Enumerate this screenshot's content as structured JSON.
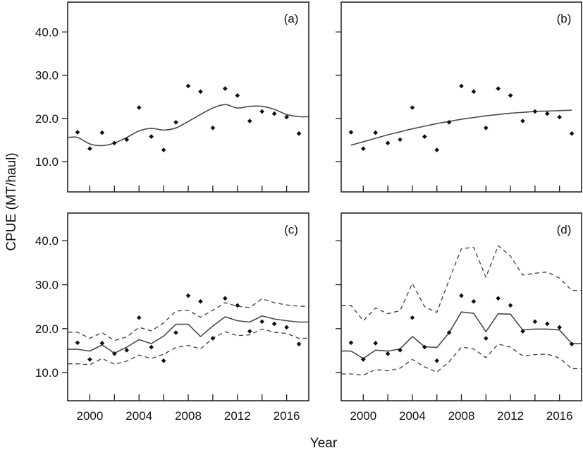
{
  "figure": {
    "y_axis_title": "CPUE (MT/haul)",
    "x_axis_title": "Year"
  },
  "axes": {
    "y_ticks": [
      10,
      20,
      30,
      40
    ],
    "y_tick_labels": [
      "10.0",
      "20.0",
      "30.0",
      "40.0"
    ],
    "x_minor_tick_years": [
      2000,
      2002,
      2004,
      2006,
      2008,
      2010,
      2012,
      2014,
      2016
    ],
    "x_labeled_ticks": [
      2000,
      2004,
      2008,
      2012,
      2016
    ],
    "x_tick_labels": [
      "2000",
      "2004",
      "2008",
      "2012",
      "2016"
    ]
  },
  "colors": {
    "points": "#0d0d0d",
    "fit_line": "#4a4a4a",
    "ci_line": "#3d3d3d",
    "frame": "#1a1a1a"
  },
  "chart_data": [
    {
      "type": "scatter",
      "panel_label": "(a)",
      "position": "top-left",
      "xlabel": "Year",
      "ylabel": "CPUE (MT/haul)",
      "xlim": [
        1998.2,
        2017.8
      ],
      "ylim": [
        3.0,
        46.9
      ],
      "x": [
        1999,
        2000,
        2001,
        2002,
        2003,
        2004,
        2005,
        2006,
        2007,
        2008,
        2009,
        2010,
        2011,
        2012,
        2013,
        2014,
        2015,
        2016,
        2017
      ],
      "points": [
        16.8,
        13.0,
        16.7,
        14.3,
        15.1,
        22.5,
        15.8,
        12.7,
        19.1,
        27.5,
        26.2,
        17.8,
        26.9,
        25.3,
        19.4,
        21.6,
        21.1,
        20.3,
        16.5
      ],
      "lines": [
        {
          "name": "smoother-fit",
          "style": "solid",
          "smooth": true,
          "extend_to_edges": true,
          "values": [
            15.6,
            14.1,
            13.7,
            14.3,
            15.6,
            17.1,
            17.7,
            17.3,
            17.8,
            19.3,
            20.9,
            22.4,
            23.2,
            22.4,
            22.8,
            22.8,
            22.1,
            20.9,
            20.4
          ]
        }
      ],
      "show_y_tick_labels": true,
      "show_x_tick_labels": false,
      "legend": "none",
      "grid": false
    },
    {
      "type": "scatter",
      "panel_label": "(b)",
      "position": "top-right",
      "xlabel": "Year",
      "ylabel": "CPUE (MT/haul)",
      "xlim": [
        1998.2,
        2017.8
      ],
      "ylim": [
        3.0,
        46.9
      ],
      "x": [
        1999,
        2000,
        2001,
        2002,
        2003,
        2004,
        2005,
        2006,
        2007,
        2008,
        2009,
        2010,
        2011,
        2012,
        2013,
        2014,
        2015,
        2016,
        2017
      ],
      "points": [
        16.8,
        13.0,
        16.7,
        14.3,
        15.1,
        22.5,
        15.8,
        12.7,
        19.1,
        27.5,
        26.2,
        17.8,
        26.9,
        25.3,
        19.4,
        21.6,
        21.1,
        20.3,
        16.5
      ],
      "lines": [
        {
          "name": "asymptotic-fit",
          "style": "solid",
          "smooth": true,
          "extend_to_edges": false,
          "values": [
            13.8,
            14.6,
            15.4,
            16.2,
            16.9,
            17.6,
            18.2,
            18.8,
            19.3,
            19.8,
            20.2,
            20.6,
            20.9,
            21.2,
            21.4,
            21.6,
            21.7,
            21.8,
            21.9
          ]
        }
      ],
      "show_y_tick_labels": false,
      "show_x_tick_labels": false,
      "legend": "none",
      "grid": false
    },
    {
      "type": "scatter",
      "panel_label": "(c)",
      "position": "bottom-left",
      "xlabel": "Year",
      "ylabel": "CPUE (MT/haul)",
      "xlim": [
        1998.2,
        2017.8
      ],
      "ylim": [
        3.6,
        46.3
      ],
      "x": [
        1999,
        2000,
        2001,
        2002,
        2003,
        2004,
        2005,
        2006,
        2007,
        2008,
        2009,
        2010,
        2011,
        2012,
        2013,
        2014,
        2015,
        2016,
        2017
      ],
      "points": [
        16.8,
        13.0,
        16.7,
        14.3,
        15.1,
        22.5,
        15.8,
        12.7,
        19.1,
        27.5,
        26.2,
        17.8,
        26.9,
        25.3,
        19.4,
        21.6,
        21.1,
        20.3,
        16.5
      ],
      "lines": [
        {
          "name": "standardized-fit",
          "style": "solid",
          "smooth": false,
          "extend_to_edges": true,
          "values": [
            15.3,
            14.9,
            16.3,
            14.4,
            15.8,
            17.5,
            16.6,
            18.3,
            21.0,
            21.0,
            18.2,
            20.6,
            22.7,
            21.8,
            21.5,
            22.9,
            22.2,
            21.8,
            21.5
          ]
        },
        {
          "name": "upper-ci",
          "style": "dashed",
          "smooth": false,
          "extend_to_edges": true,
          "values": [
            19.2,
            17.8,
            19.1,
            17.3,
            18.1,
            20.3,
            19.5,
            21.3,
            24.0,
            24.2,
            22.6,
            24.2,
            25.9,
            25.1,
            24.8,
            26.8,
            25.9,
            25.4,
            25.1
          ]
        },
        {
          "name": "lower-ci",
          "style": "dashed",
          "smooth": false,
          "extend_to_edges": true,
          "values": [
            12.0,
            11.8,
            13.2,
            11.9,
            12.6,
            14.0,
            13.2,
            14.2,
            15.7,
            16.2,
            15.4,
            17.8,
            19.3,
            18.4,
            18.6,
            19.9,
            19.2,
            18.9,
            17.8
          ]
        }
      ],
      "show_y_tick_labels": true,
      "show_x_tick_labels": true,
      "legend": "none",
      "grid": false
    },
    {
      "type": "scatter",
      "panel_label": "(d)",
      "position": "bottom-right",
      "xlabel": "Year",
      "ylabel": "CPUE (MT/haul)",
      "xlim": [
        1998.2,
        2017.8
      ],
      "ylim": [
        3.6,
        46.3
      ],
      "x": [
        1999,
        2000,
        2001,
        2002,
        2003,
        2004,
        2005,
        2006,
        2007,
        2008,
        2009,
        2010,
        2011,
        2012,
        2013,
        2014,
        2015,
        2016,
        2017
      ],
      "points": [
        16.8,
        13.0,
        16.7,
        14.3,
        15.1,
        22.5,
        15.8,
        12.7,
        19.1,
        27.5,
        26.2,
        17.8,
        26.9,
        25.3,
        19.4,
        21.6,
        21.1,
        20.3,
        16.5
      ],
      "lines": [
        {
          "name": "standardized-fit",
          "style": "solid",
          "smooth": false,
          "extend_to_edges": true,
          "values": [
            14.9,
            13.2,
            15.1,
            14.9,
            15.4,
            18.2,
            15.9,
            15.7,
            19.1,
            23.8,
            23.5,
            19.3,
            23.4,
            23.3,
            19.7,
            19.9,
            19.9,
            19.7,
            16.6
          ]
        },
        {
          "name": "upper-ci",
          "style": "dashed",
          "smooth": false,
          "extend_to_edges": true,
          "values": [
            25.3,
            21.8,
            24.7,
            23.4,
            24.1,
            30.3,
            25.0,
            23.7,
            31.1,
            38.2,
            38.5,
            31.7,
            38.9,
            36.5,
            32.2,
            32.6,
            32.9,
            31.5,
            28.7
          ]
        },
        {
          "name": "lower-ci",
          "style": "dashed",
          "smooth": false,
          "extend_to_edges": true,
          "values": [
            9.7,
            9.4,
            10.7,
            10.4,
            11.0,
            13.0,
            11.3,
            10.1,
            12.5,
            15.8,
            15.4,
            13.4,
            16.5,
            15.8,
            13.8,
            14.1,
            14.2,
            13.3,
            10.9
          ]
        }
      ],
      "show_y_tick_labels": false,
      "show_x_tick_labels": true,
      "legend": "none",
      "grid": false
    }
  ]
}
